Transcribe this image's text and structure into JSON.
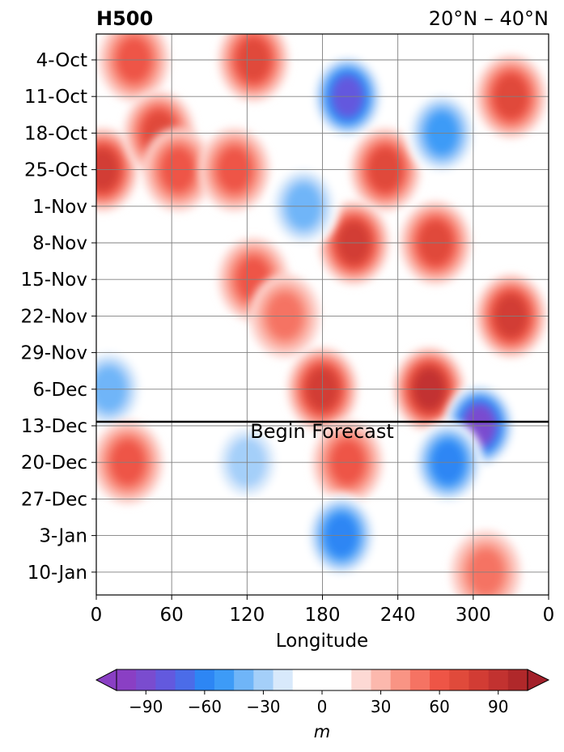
{
  "chart_data": {
    "type": "heatmap",
    "title_left": "H500",
    "title_right": "20°N – 40°N",
    "xlabel": "Longitude",
    "ylabel": "",
    "x_ticks": [
      "0",
      "60",
      "120",
      "180",
      "240",
      "300",
      "0"
    ],
    "x_tick_values": [
      0,
      60,
      120,
      180,
      240,
      300,
      360
    ],
    "xlim": [
      0,
      360
    ],
    "y_ticks": [
      "4-Oct",
      "11-Oct",
      "18-Oct",
      "25-Oct",
      "1-Nov",
      "8-Nov",
      "15-Nov",
      "22-Nov",
      "29-Nov",
      "6-Dec",
      "13-Dec",
      "20-Dec",
      "27-Dec",
      "3-Jan",
      "10-Jan"
    ],
    "grid": true,
    "forecast_marker": {
      "label": "Begin Forecast",
      "date": "13-Dec"
    },
    "colorbar": {
      "label": "m",
      "ticks": [
        "−90",
        "−60",
        "−30",
        "0",
        "30",
        "60",
        "90"
      ],
      "tick_values": [
        -90,
        -60,
        -30,
        0,
        30,
        60,
        90
      ],
      "levels": [
        -105,
        -95,
        -85,
        -75,
        -65,
        -55,
        -45,
        -35,
        -25,
        -15,
        5,
        15,
        25,
        35,
        45,
        55,
        65,
        75,
        85,
        95,
        105
      ],
      "extend": "both",
      "colors": [
        "#8a3fc4",
        "#7a4ccf",
        "#6359de",
        "#4b6ce8",
        "#2d86f4",
        "#3d9bf7",
        "#6fb5f8",
        "#a4cff9",
        "#d8e9fb",
        "#ffffff",
        "#ffffff",
        "#fdd9d4",
        "#fcb8ad",
        "#f99484",
        "#f57363",
        "#ee5546",
        "#e04a3b",
        "#d23c34",
        "#c23230",
        "#b0282a"
      ],
      "under_color": "#8a3fc4",
      "over_color": "#a3202a"
    },
    "anomaly_centers": [
      {
        "lon": 5,
        "date": "25-Oct",
        "value": 75
      },
      {
        "lon": 30,
        "date": "4-Oct",
        "value": 60
      },
      {
        "lon": 50,
        "date": "18-Oct",
        "value": 70
      },
      {
        "lon": 65,
        "date": "25-Oct",
        "value": 55
      },
      {
        "lon": 125,
        "date": "4-Oct",
        "value": 70
      },
      {
        "lon": 110,
        "date": "25-Oct",
        "value": 60
      },
      {
        "lon": 125,
        "date": "15-Nov",
        "value": 55
      },
      {
        "lon": 150,
        "date": "22-Nov",
        "value": 45
      },
      {
        "lon": 200,
        "date": "11-Oct",
        "value": -85
      },
      {
        "lon": 230,
        "date": "25-Oct",
        "value": 65
      },
      {
        "lon": 205,
        "date": "8-Nov",
        "value": 80
      },
      {
        "lon": 165,
        "date": "1-Nov",
        "value": -45
      },
      {
        "lon": 275,
        "date": "18-Oct",
        "value": -60
      },
      {
        "lon": 330,
        "date": "11-Oct",
        "value": 70
      },
      {
        "lon": 270,
        "date": "8-Nov",
        "value": 70
      },
      {
        "lon": 330,
        "date": "22-Nov",
        "value": 80
      },
      {
        "lon": 180,
        "date": "6-Dec",
        "value": 75
      },
      {
        "lon": 265,
        "date": "6-Dec",
        "value": 85
      },
      {
        "lon": 305,
        "date": "13-Dec",
        "value": -100
      },
      {
        "lon": 280,
        "date": "20-Dec",
        "value": -70
      },
      {
        "lon": 10,
        "date": "6-Dec",
        "value": -50
      },
      {
        "lon": 25,
        "date": "20-Dec",
        "value": 60
      },
      {
        "lon": 200,
        "date": "20-Dec",
        "value": 55
      },
      {
        "lon": 195,
        "date": "3-Jan",
        "value": -70
      },
      {
        "lon": 120,
        "date": "20-Dec",
        "value": -40
      },
      {
        "lon": 310,
        "date": "10-Jan",
        "value": 45
      }
    ]
  }
}
